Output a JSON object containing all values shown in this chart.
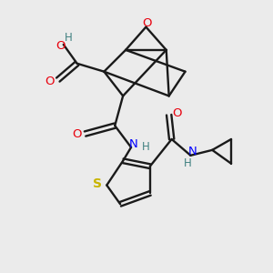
{
  "background_color": "#ebebeb",
  "bond_color": "#1a1a1a",
  "atom_colors": {
    "O": "#e8000d",
    "N": "#0000ff",
    "S": "#c8b400",
    "C": "#1a1a1a",
    "H": "#408080"
  },
  "figsize": [
    3.0,
    3.0
  ],
  "dpi": 100
}
